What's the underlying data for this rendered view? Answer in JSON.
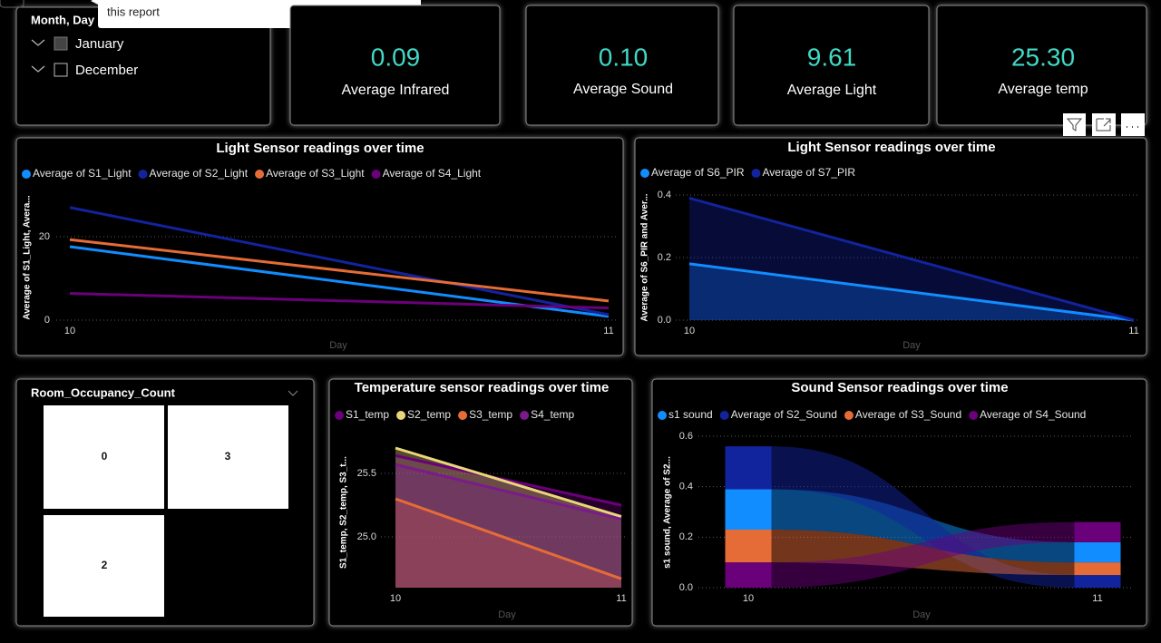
{
  "tooltip": {
    "text": "this report"
  },
  "slicer": {
    "title": "Month, Day",
    "items": [
      "January",
      "December"
    ]
  },
  "cards": [
    {
      "value": "0.09",
      "label": "Average Infrared"
    },
    {
      "value": "0.10",
      "label": "Average Sound"
    },
    {
      "value": "9.61",
      "label": "Average Light"
    },
    {
      "value": "25.30",
      "label": "Average temp"
    }
  ],
  "occupancy": {
    "title": "Room_Occupancy_Count",
    "tiles": [
      "0",
      "3",
      "2"
    ]
  },
  "chart_data": [
    {
      "type": "line",
      "title": "Light Sensor readings over time",
      "y_label": "Average of S1_Light, Avera...",
      "x_label": "Day",
      "x": [
        10,
        11
      ],
      "xlim": [
        10,
        11
      ],
      "xticks": [
        10,
        11
      ],
      "ylim": [
        0,
        30
      ],
      "yticks": [
        0,
        20
      ],
      "grid": true,
      "series": [
        {
          "name": "Average of S1_Light",
          "color": "#118DFF",
          "values": [
            17.6,
            0.9
          ]
        },
        {
          "name": "Average of S2_Light",
          "color": "#12239E",
          "values": [
            27.0,
            1.3
          ]
        },
        {
          "name": "Average of S3_Light",
          "color": "#E66C37",
          "values": [
            19.3,
            4.6
          ]
        },
        {
          "name": "Average of S4_Light",
          "color": "#6B007B",
          "values": [
            6.4,
            2.9
          ]
        }
      ]
    },
    {
      "type": "area",
      "title": "Light Sensor readings over time",
      "y_label": "Average of S6_PIR and Aver...",
      "x_label": "Day",
      "x": [
        10,
        11
      ],
      "xlim": [
        10,
        11
      ],
      "xticks": [
        10,
        11
      ],
      "ylim": [
        0,
        0.4
      ],
      "yticks": [
        {
          "value": 0,
          "label": "0.0"
        },
        0.2,
        0.4
      ],
      "grid": true,
      "series": [
        {
          "name": "Average of S6_PIR",
          "color": "#118DFF",
          "values": [
            0.18,
            0
          ]
        },
        {
          "name": "Average of S7_PIR",
          "color": "#12239E",
          "values": [
            0.39,
            0
          ]
        }
      ]
    },
    {
      "type": "area",
      "title": "Temperature sensor readings over time",
      "y_label": "S1_temp, S2_temp, S3_t...",
      "x_label": "Day",
      "x": [
        10,
        11
      ],
      "xlim": [
        10,
        11
      ],
      "xticks": [
        10,
        11
      ],
      "ylim": [
        24.6,
        25.8
      ],
      "yticks": [
        {
          "value": 25,
          "label": "25.0"
        },
        25.5
      ],
      "grid": true,
      "series": [
        {
          "name": "S1_temp",
          "color": "#6B007B",
          "values": [
            25.64,
            25.25
          ]
        },
        {
          "name": "S2_temp",
          "color": "#EAD67A",
          "values": [
            25.7,
            25.16
          ]
        },
        {
          "name": "S3_temp",
          "color": "#E66C37",
          "values": [
            25.3,
            24.67
          ]
        },
        {
          "name": "S4_temp",
          "color": "#7A1A8C",
          "values": [
            25.57,
            25.14
          ]
        }
      ]
    },
    {
      "type": "ribbon",
      "title": "Sound Sensor readings over time",
      "y_label": "s1 sound, Average of S2...",
      "x_label": "Day",
      "x": [
        10,
        11
      ],
      "xlim": [
        10,
        11
      ],
      "xticks": [
        10,
        11
      ],
      "ylim": [
        0,
        0.6
      ],
      "yticks": [
        {
          "value": 0,
          "label": "0.0"
        },
        0.2,
        0.4,
        0.6
      ],
      "grid": true,
      "series": [
        {
          "name": "s1 sound",
          "color": "#118DFF",
          "values": [
            0.16,
            0.08
          ]
        },
        {
          "name": "Average of S2_Sound",
          "color": "#12239E",
          "values": [
            0.17,
            0.05
          ]
        },
        {
          "name": "Average of S3_Sound",
          "color": "#E66C37",
          "values": [
            0.13,
            0.05
          ]
        },
        {
          "name": "Average of S4_Sound",
          "color": "#6B007B",
          "values": [
            0.1,
            0.08
          ]
        }
      ]
    }
  ]
}
